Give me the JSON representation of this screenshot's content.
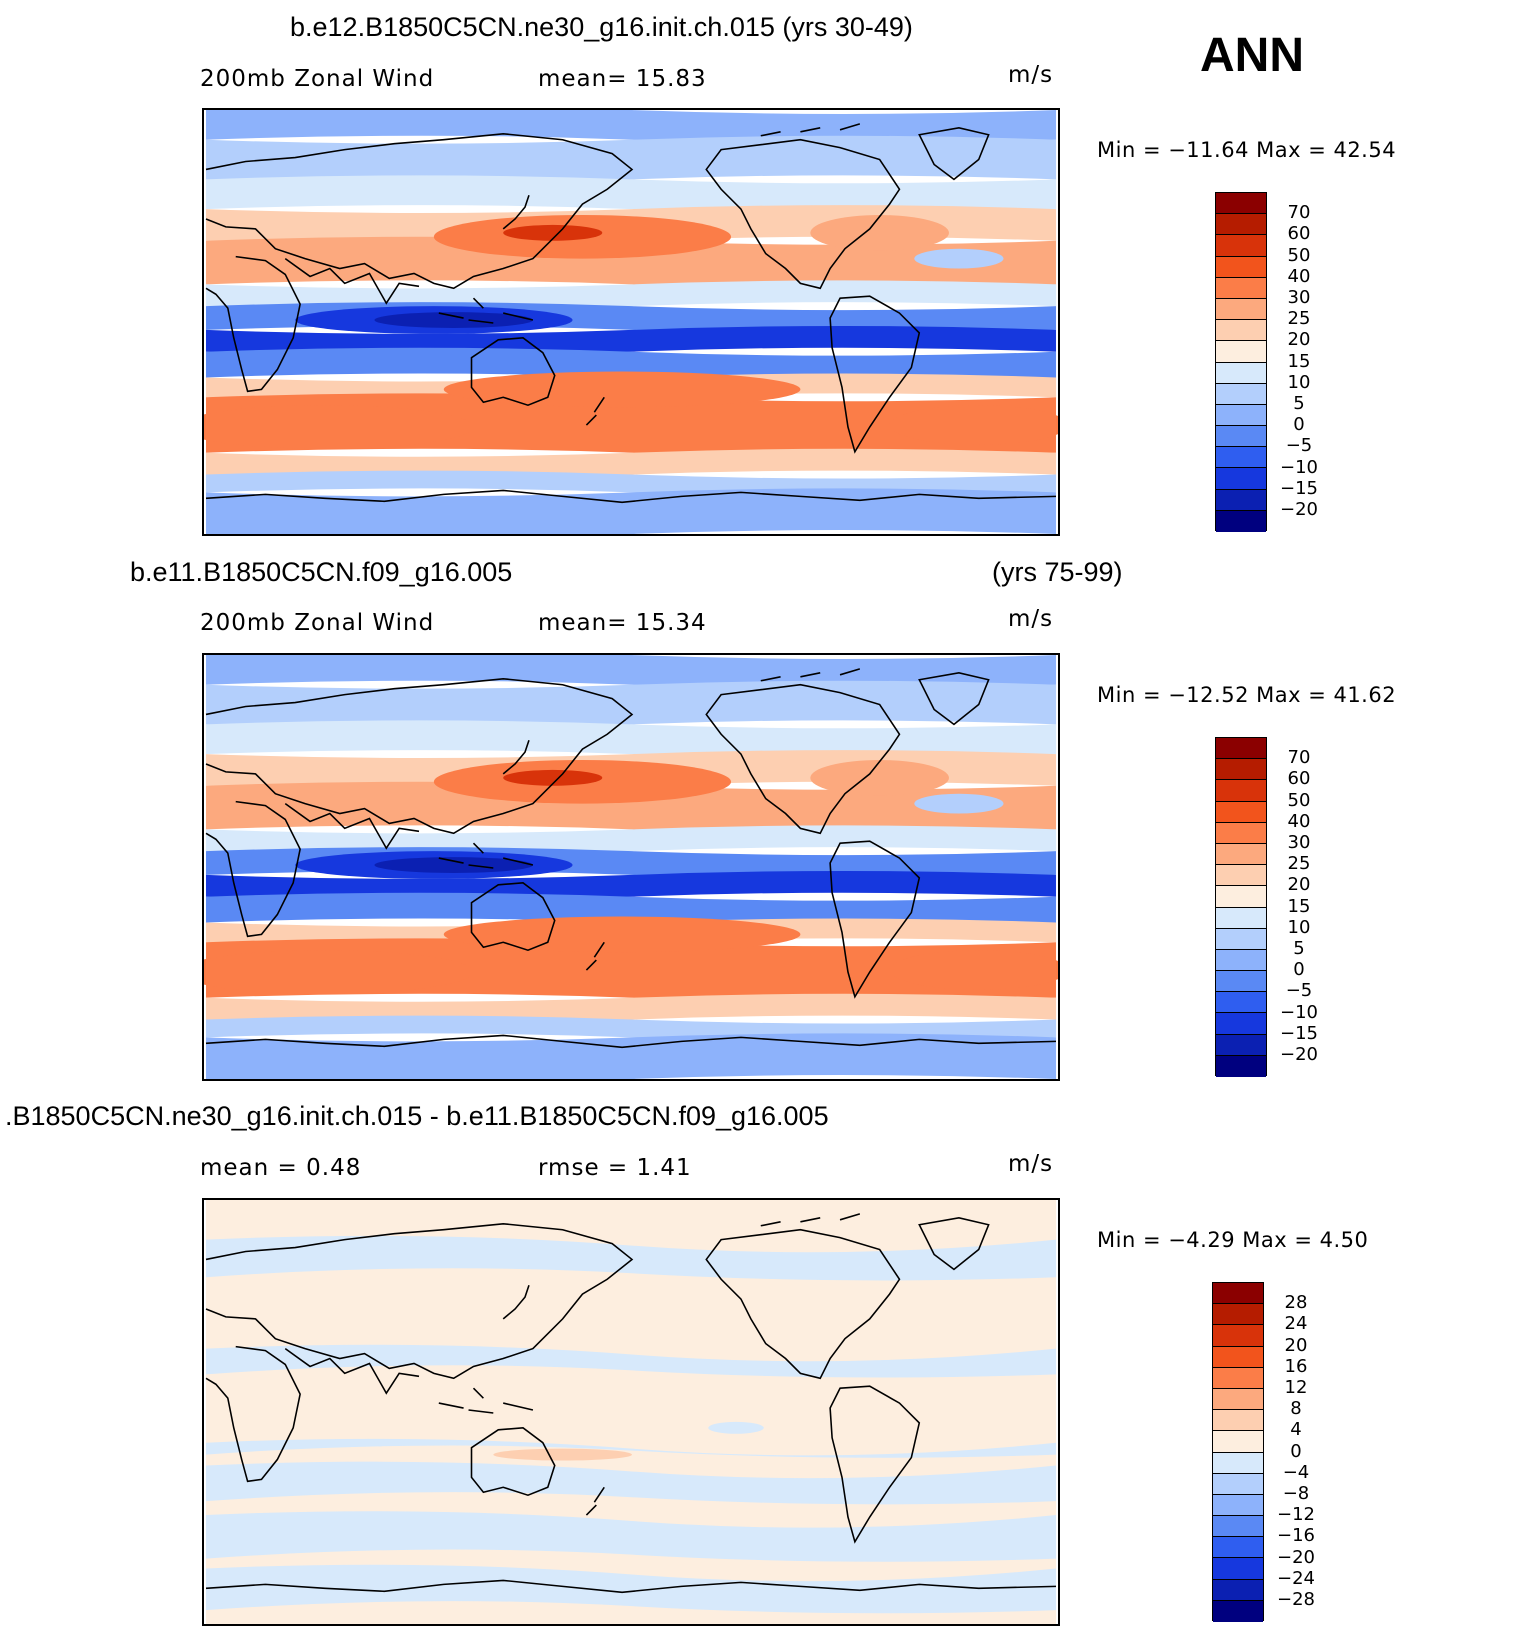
{
  "season": "ANN",
  "panels": [
    {
      "title": "b.e12.B1850C5CN.ne30_g16.init.ch.015 (yrs 30-49)",
      "title_right": "",
      "variable": "200mb Zonal Wind",
      "stat1": "mean=   15.83",
      "stat2": "",
      "units": "m/s",
      "minmax": "Min  =  −11.64  Max  =    42.54",
      "colorbar_labels": [
        "70",
        "60",
        "50",
        "40",
        "30",
        "25",
        "20",
        "15",
        "10",
        "5",
        "0",
        "−5",
        "−10",
        "−15",
        "−20"
      ],
      "colors": [
        "#8b0000",
        "#b51c00",
        "#d8330a",
        "#f2541c",
        "#fb7d48",
        "#fca97e",
        "#fdcfb1",
        "#fdeedf",
        "#d7e9fb",
        "#b3cffc",
        "#8db2fb",
        "#5a89f4",
        "#2f5ef0",
        "#1638de",
        "#0b20b2",
        "#00007f"
      ],
      "diff": false
    },
    {
      "title": "b.e11.B1850C5CN.f09_g16.005",
      "title_right": "(yrs 75-99)",
      "variable": "200mb Zonal Wind",
      "stat1": "mean=   15.34",
      "stat2": "",
      "units": "m/s",
      "minmax": "Min  =  −12.52  Max  =    41.62",
      "colorbar_labels": [
        "70",
        "60",
        "50",
        "40",
        "30",
        "25",
        "20",
        "15",
        "10",
        "5",
        "0",
        "−5",
        "−10",
        "−15",
        "−20"
      ],
      "colors": [
        "#8b0000",
        "#b51c00",
        "#d8330a",
        "#f2541c",
        "#fb7d48",
        "#fca97e",
        "#fdcfb1",
        "#fdeedf",
        "#d7e9fb",
        "#b3cffc",
        "#8db2fb",
        "#5a89f4",
        "#2f5ef0",
        "#1638de",
        "#0b20b2",
        "#00007f"
      ],
      "diff": false
    },
    {
      "title": ".B1850C5CN.ne30_g16.init.ch.015 - b.e11.B1850C5CN.f09_g16.005",
      "title_right": "",
      "variable": "mean =     0.48",
      "stat1": "rmse  =     1.41",
      "stat2": "",
      "units": "m/s",
      "minmax": "Min  =    −4.29  Max  =      4.50",
      "colorbar_labels": [
        "28",
        "24",
        "20",
        "16",
        "12",
        "8",
        "4",
        "0",
        "−4",
        "−8",
        "−12",
        "−16",
        "−20",
        "−24",
        "−28"
      ],
      "colors": [
        "#8b0000",
        "#b51c00",
        "#d8330a",
        "#f2541c",
        "#fb7d48",
        "#fca97e",
        "#fdcfb1",
        "#fdeedf",
        "#d7e9fb",
        "#b3cffc",
        "#8db2fb",
        "#5a89f4",
        "#2f5ef0",
        "#1638de",
        "#0b20b2",
        "#00007f"
      ],
      "diff": true
    }
  ]
}
